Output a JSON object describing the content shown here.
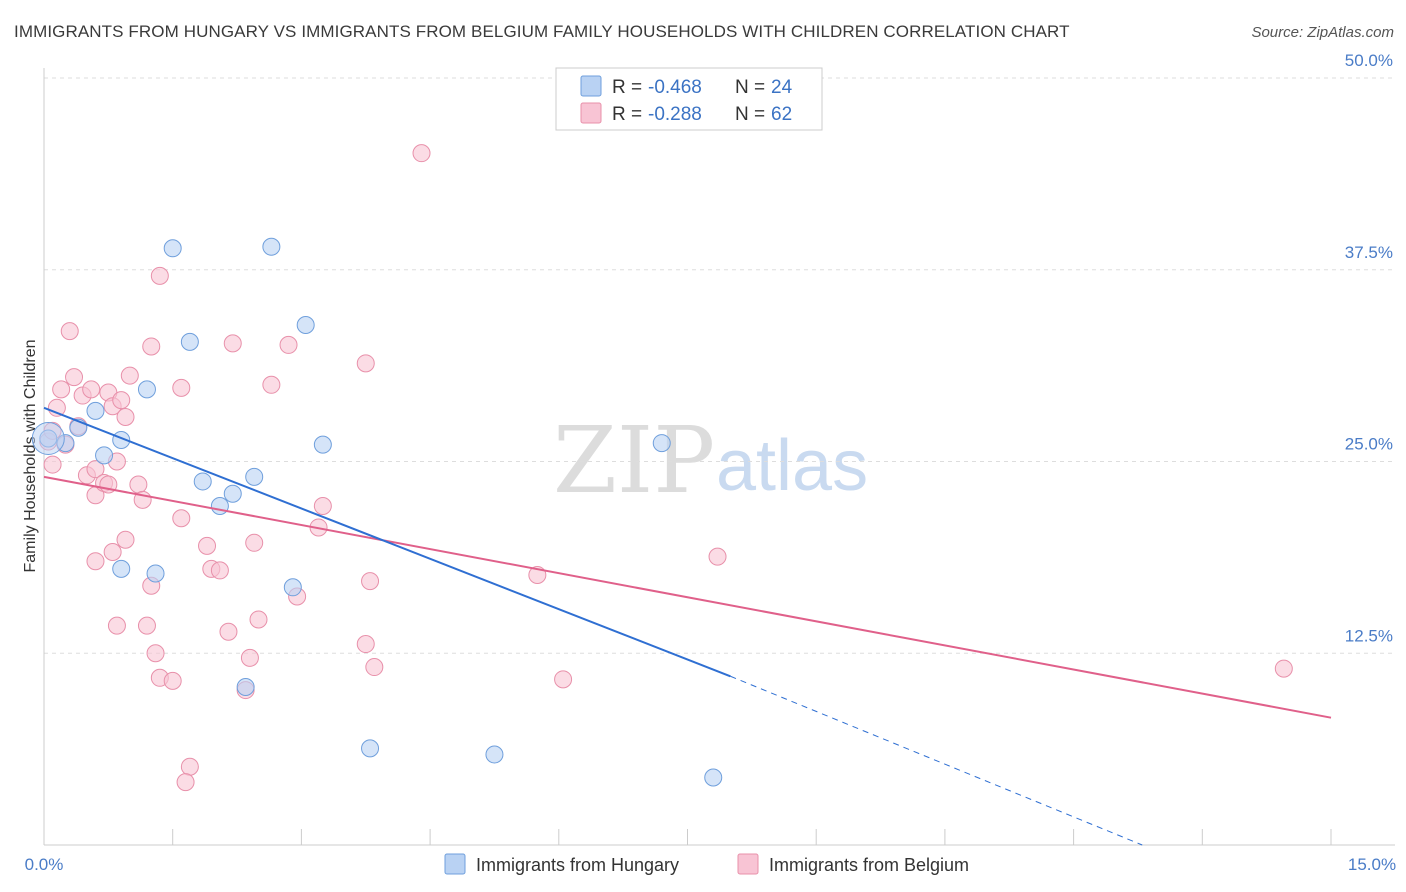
{
  "title": "IMMIGRANTS FROM HUNGARY VS IMMIGRANTS FROM BELGIUM FAMILY HOUSEHOLDS WITH CHILDREN CORRELATION CHART",
  "source": "Source: ZipAtlas.com",
  "watermark": {
    "zip": "ZIP",
    "atlas": "atlas"
  },
  "colors": {
    "hungary_fill": "#b9d2f3",
    "hungary_stroke": "#6f9fdc",
    "hungary_line": "#2f6fd2",
    "belgium_fill": "#f8c4d4",
    "belgium_stroke": "#e890aa",
    "belgium_line": "#e0608a",
    "tick_label": "#4a7cc7",
    "grid": "#dddddd"
  },
  "legend": {
    "hungary": {
      "r_label": "R =",
      "r_value": "-0.468",
      "n_label": "N =",
      "n_value": "24"
    },
    "belgium": {
      "r_label": "R =",
      "r_value": "-0.288",
      "n_label": "N =",
      "n_value": "62"
    }
  },
  "chart_data": {
    "type": "scatter",
    "title": "IMMIGRANTS FROM HUNGARY VS IMMIGRANTS FROM BELGIUM FAMILY HOUSEHOLDS WITH CHILDREN CORRELATION CHART",
    "xlabel": "",
    "ylabel": "Family Households with Children",
    "xlim": [
      0,
      15
    ],
    "ylim": [
      0,
      50
    ],
    "x_tick_labels": {
      "min": "0.0%",
      "max": "15.0%"
    },
    "y_ticks": [
      {
        "value": 12.5,
        "label": "12.5%"
      },
      {
        "value": 25.0,
        "label": "25.0%"
      },
      {
        "value": 37.5,
        "label": "37.5%"
      },
      {
        "value": 50.0,
        "label": "50.0%"
      }
    ],
    "series": [
      {
        "name": "Immigrants from Hungary",
        "points": [
          {
            "x": 0.05,
            "y": 26.5
          },
          {
            "x": 0.25,
            "y": 26.2
          },
          {
            "x": 0.4,
            "y": 27.2
          },
          {
            "x": 0.6,
            "y": 28.3
          },
          {
            "x": 0.7,
            "y": 25.4
          },
          {
            "x": 0.9,
            "y": 26.4
          },
          {
            "x": 1.2,
            "y": 29.7
          },
          {
            "x": 1.5,
            "y": 38.9
          },
          {
            "x": 1.7,
            "y": 32.8
          },
          {
            "x": 1.85,
            "y": 23.7
          },
          {
            "x": 2.05,
            "y": 22.1
          },
          {
            "x": 2.2,
            "y": 22.9
          },
          {
            "x": 2.45,
            "y": 24.0
          },
          {
            "x": 2.65,
            "y": 39.0
          },
          {
            "x": 3.05,
            "y": 33.9
          },
          {
            "x": 3.25,
            "y": 26.1
          },
          {
            "x": 7.2,
            "y": 26.2
          },
          {
            "x": 0.9,
            "y": 18.0
          },
          {
            "x": 1.3,
            "y": 17.7
          },
          {
            "x": 2.9,
            "y": 16.8
          },
          {
            "x": 2.35,
            "y": 10.3
          },
          {
            "x": 3.8,
            "y": 6.3
          },
          {
            "x": 5.25,
            "y": 5.9
          },
          {
            "x": 7.8,
            "y": 4.4
          }
        ],
        "trend": {
          "x": [
            0.0,
            8.0
          ],
          "y": [
            28.5,
            11.0
          ]
        },
        "trend_extension": {
          "x": [
            8.0,
            12.8
          ],
          "y": [
            11.0,
            0.0
          ]
        }
      },
      {
        "name": "Immigrants from Belgium",
        "points": [
          {
            "x": 0.1,
            "y": 24.8
          },
          {
            "x": 0.15,
            "y": 28.5
          },
          {
            "x": 0.2,
            "y": 29.7
          },
          {
            "x": 0.25,
            "y": 26.1
          },
          {
            "x": 0.3,
            "y": 33.5
          },
          {
            "x": 0.35,
            "y": 30.5
          },
          {
            "x": 0.4,
            "y": 27.3
          },
          {
            "x": 0.45,
            "y": 29.3
          },
          {
            "x": 0.5,
            "y": 24.1
          },
          {
            "x": 0.55,
            "y": 29.7
          },
          {
            "x": 0.6,
            "y": 24.5
          },
          {
            "x": 0.6,
            "y": 18.5
          },
          {
            "x": 0.6,
            "y": 22.8
          },
          {
            "x": 0.7,
            "y": 23.6
          },
          {
            "x": 0.75,
            "y": 29.5
          },
          {
            "x": 0.75,
            "y": 23.5
          },
          {
            "x": 0.8,
            "y": 28.6
          },
          {
            "x": 0.8,
            "y": 19.1
          },
          {
            "x": 0.85,
            "y": 14.3
          },
          {
            "x": 0.85,
            "y": 25.0
          },
          {
            "x": 0.9,
            "y": 29.0
          },
          {
            "x": 0.95,
            "y": 27.9
          },
          {
            "x": 0.95,
            "y": 19.9
          },
          {
            "x": 1.0,
            "y": 30.6
          },
          {
            "x": 1.1,
            "y": 23.5
          },
          {
            "x": 1.15,
            "y": 22.5
          },
          {
            "x": 1.2,
            "y": 14.3
          },
          {
            "x": 1.25,
            "y": 16.9
          },
          {
            "x": 1.25,
            "y": 32.5
          },
          {
            "x": 1.3,
            "y": 12.5
          },
          {
            "x": 1.35,
            "y": 10.9
          },
          {
            "x": 1.35,
            "y": 37.1
          },
          {
            "x": 1.5,
            "y": 10.7
          },
          {
            "x": 1.6,
            "y": 29.8
          },
          {
            "x": 1.6,
            "y": 21.3
          },
          {
            "x": 1.7,
            "y": 5.1
          },
          {
            "x": 1.65,
            "y": 4.1
          },
          {
            "x": 1.9,
            "y": 19.5
          },
          {
            "x": 1.95,
            "y": 18.0
          },
          {
            "x": 2.05,
            "y": 17.9
          },
          {
            "x": 2.15,
            "y": 13.9
          },
          {
            "x": 2.2,
            "y": 32.7
          },
          {
            "x": 2.35,
            "y": 10.1
          },
          {
            "x": 2.4,
            "y": 12.2
          },
          {
            "x": 2.45,
            "y": 19.7
          },
          {
            "x": 2.5,
            "y": 14.7
          },
          {
            "x": 2.65,
            "y": 30.0
          },
          {
            "x": 2.85,
            "y": 32.6
          },
          {
            "x": 2.95,
            "y": 16.2
          },
          {
            "x": 3.2,
            "y": 20.7
          },
          {
            "x": 3.25,
            "y": 22.1
          },
          {
            "x": 3.75,
            "y": 31.4
          },
          {
            "x": 3.75,
            "y": 13.1
          },
          {
            "x": 3.8,
            "y": 17.2
          },
          {
            "x": 3.85,
            "y": 11.6
          },
          {
            "x": 4.4,
            "y": 45.1
          },
          {
            "x": 5.75,
            "y": 17.6
          },
          {
            "x": 6.05,
            "y": 10.8
          },
          {
            "x": 7.85,
            "y": 18.8
          },
          {
            "x": 14.45,
            "y": 11.5
          },
          {
            "x": 0.05,
            "y": 26.3
          },
          {
            "x": 0.1,
            "y": 27.0
          }
        ],
        "trend": {
          "x": [
            0.0,
            15.0
          ],
          "y": [
            24.0,
            8.3
          ]
        }
      }
    ]
  }
}
